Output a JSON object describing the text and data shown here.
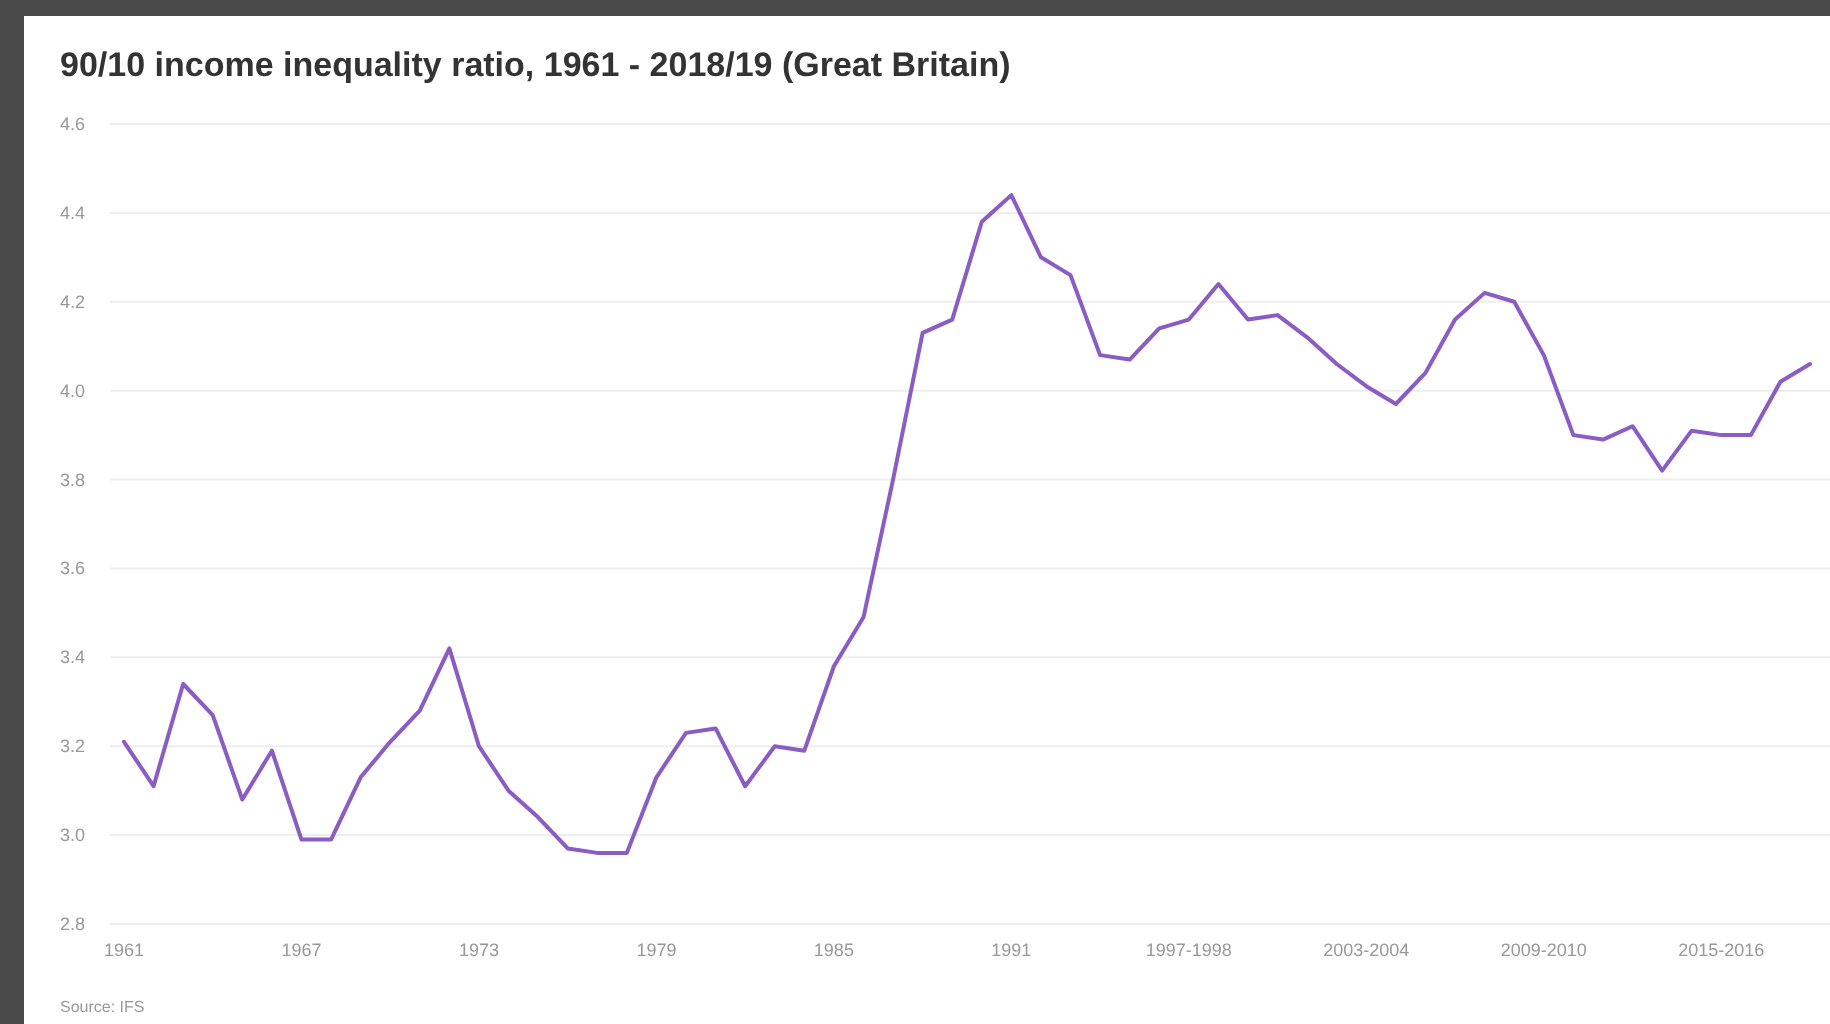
{
  "chart_data": {
    "type": "line",
    "title": "90/10 income inequality ratio, 1961 - 2018/19 (Great Britain)",
    "categories": [
      "1961",
      null,
      null,
      null,
      null,
      null,
      "1967",
      null,
      null,
      null,
      null,
      null,
      "1973",
      null,
      null,
      null,
      null,
      null,
      "1979",
      null,
      null,
      null,
      null,
      null,
      "1985",
      null,
      null,
      null,
      null,
      null,
      "1991",
      null,
      null,
      null,
      null,
      null,
      "1997-1998",
      null,
      null,
      null,
      null,
      null,
      "2003-2004",
      null,
      null,
      null,
      null,
      null,
      "2009-2010",
      null,
      null,
      null,
      null,
      null,
      "2015-2016",
      null,
      null,
      null
    ],
    "series": [
      {
        "color": "#8a5cc4",
        "values": [
          3.21,
          3.11,
          3.34,
          3.27,
          3.08,
          3.19,
          2.99,
          2.99,
          3.13,
          3.21,
          3.28,
          3.42,
          3.2,
          3.1,
          3.04,
          2.97,
          2.96,
          2.96,
          3.13,
          3.23,
          3.24,
          3.11,
          3.2,
          3.19,
          3.38,
          3.49,
          3.8,
          4.13,
          4.16,
          4.38,
          4.44,
          4.3,
          4.26,
          4.08,
          4.07,
          4.14,
          4.16,
          4.24,
          4.16,
          4.17,
          4.12,
          4.06,
          4.01,
          3.97,
          4.04,
          4.16,
          4.22,
          4.2,
          4.08,
          3.9,
          3.89,
          3.92,
          3.82,
          3.91,
          3.9,
          3.9,
          4.02,
          4.06
        ]
      }
    ],
    "ylim": [
      2.8,
      4.6
    ],
    "yticks": [
      2.8,
      {
        "value": 3,
        "label": "3.0"
      },
      3.2,
      3.4,
      3.6,
      3.8,
      {
        "value": 4,
        "label": "4.0"
      },
      4.2,
      4.4,
      4.6
    ],
    "grid": "y",
    "annotations": [
      "Source: IFS"
    ]
  }
}
